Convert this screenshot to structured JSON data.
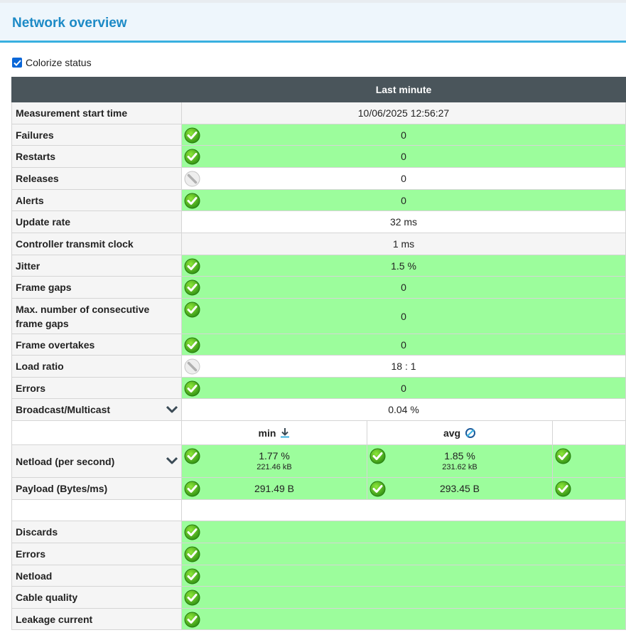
{
  "page": {
    "title": "Network overview"
  },
  "colorize": {
    "label": "Colorize status",
    "checked": true
  },
  "table": {
    "header": "Last minute",
    "rows": [
      {
        "label": "Measurement start time",
        "value": "10/06/2025 12:56:27",
        "status": "none"
      },
      {
        "label": "Failures",
        "value": "0",
        "status": "ok"
      },
      {
        "label": "Restarts",
        "value": "0",
        "status": "ok"
      },
      {
        "label": "Releases",
        "value": "0",
        "status": "inactive"
      },
      {
        "label": "Alerts",
        "value": "0",
        "status": "ok"
      },
      {
        "label": "Update rate",
        "value": "32 ms",
        "status": "none"
      },
      {
        "label": "Controller transmit clock",
        "value": "1 ms",
        "status": "none"
      },
      {
        "label": "Jitter",
        "value": "1.5 %",
        "status": "ok"
      },
      {
        "label": "Frame gaps",
        "value": "0",
        "status": "ok"
      },
      {
        "label": "Max. number of consecutive frame gaps",
        "value": "0",
        "status": "ok"
      },
      {
        "label": "Frame overtakes",
        "value": "0",
        "status": "ok"
      },
      {
        "label": "Load ratio",
        "value": "18 : 1",
        "status": "inactive"
      },
      {
        "label": "Errors",
        "value": "0",
        "status": "ok"
      },
      {
        "label": "Broadcast/Multicast",
        "value": "0.04 %",
        "status": "none"
      }
    ],
    "stats_columns": [
      {
        "label": "min",
        "icon": "arrow-down-icon"
      },
      {
        "label": "avg",
        "icon": "diameter-icon"
      }
    ],
    "stats_rows": [
      {
        "label": "Netload (per second)",
        "values": [
          "1.77 %",
          "1.85 %"
        ],
        "subvalues": [
          "221.46 kB",
          "231.62 kB"
        ]
      },
      {
        "label": "Payload (Bytes/ms)",
        "values": [
          "291.49 B",
          "293.45 B"
        ]
      }
    ],
    "port_rows": [
      {
        "label": "Discards",
        "status": "ok"
      },
      {
        "label": "Errors",
        "status": "ok"
      },
      {
        "label": "Netload",
        "status": "ok"
      },
      {
        "label": "Cable quality",
        "status": "ok"
      },
      {
        "label": "Leakage current",
        "status": "ok"
      }
    ]
  },
  "colors": {
    "ok": "#9cfd9c",
    "header": "#4a555b",
    "accent": "#1c8ac6"
  }
}
